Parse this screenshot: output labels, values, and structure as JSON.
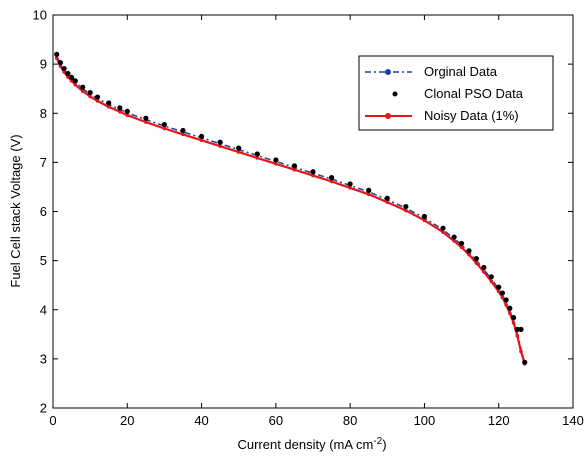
{
  "chart_data": {
    "type": "line",
    "title": "",
    "xlabel": "Current density (mA cm",
    "xlabel_sup": "-2",
    "xlabel_end": ")",
    "ylabel": "Fuel Cell stack Voltage (V)",
    "xlim": [
      0,
      140
    ],
    "ylim": [
      2,
      10
    ],
    "x_ticks": [
      "0",
      "20",
      "40",
      "60",
      "80",
      "100",
      "120",
      "140"
    ],
    "y_ticks": [
      "2",
      "3",
      "4",
      "5",
      "6",
      "7",
      "8",
      "9",
      "10"
    ],
    "grid": false,
    "legend_position": "top-right",
    "x": [
      1,
      2,
      3,
      4,
      5,
      6,
      8,
      10,
      12,
      15,
      18,
      20,
      25,
      30,
      35,
      40,
      45,
      50,
      55,
      60,
      65,
      70,
      75,
      80,
      85,
      90,
      95,
      100,
      105,
      108,
      110,
      112,
      114,
      116,
      118,
      120,
      121,
      122,
      123,
      124,
      125,
      126,
      127
    ],
    "series": [
      {
        "name": "Orginal Data",
        "color": "#1f3fa0",
        "style": "dash-dot",
        "marker": "circle",
        "values": [
          9.17,
          9.0,
          8.88,
          8.78,
          8.7,
          8.63,
          8.5,
          8.39,
          8.3,
          8.18,
          8.08,
          8.01,
          7.87,
          7.74,
          7.62,
          7.5,
          7.38,
          7.26,
          7.14,
          7.02,
          6.9,
          6.78,
          6.66,
          6.53,
          6.4,
          6.24,
          6.07,
          5.87,
          5.63,
          5.45,
          5.32,
          5.17,
          5.0,
          4.82,
          4.63,
          4.42,
          4.3,
          4.15,
          3.98,
          3.78,
          3.52,
          3.2,
          2.93
        ]
      },
      {
        "name": "Clonal PSO Data",
        "color": "#000000",
        "style": "none",
        "marker": "dot",
        "values": [
          9.2,
          9.03,
          8.91,
          8.81,
          8.73,
          8.66,
          8.53,
          8.42,
          8.33,
          8.21,
          8.11,
          8.04,
          7.9,
          7.77,
          7.65,
          7.53,
          7.41,
          7.29,
          7.17,
          7.05,
          6.93,
          6.81,
          6.69,
          6.56,
          6.43,
          6.27,
          6.1,
          5.9,
          5.66,
          5.48,
          5.35,
          5.2,
          5.04,
          4.86,
          4.67,
          4.46,
          4.34,
          4.2,
          4.03,
          3.84,
          3.6,
          3.6,
          2.93
        ]
      },
      {
        "name": "Noisy Data (1%)",
        "color": "#e8141b",
        "style": "solid",
        "marker": "circle",
        "values": [
          9.12,
          8.96,
          8.84,
          8.74,
          8.66,
          8.58,
          8.45,
          8.34,
          8.25,
          8.13,
          8.03,
          7.96,
          7.82,
          7.69,
          7.57,
          7.45,
          7.33,
          7.21,
          7.09,
          6.97,
          6.85,
          6.73,
          6.61,
          6.48,
          6.35,
          6.19,
          6.02,
          5.82,
          5.58,
          5.4,
          5.27,
          5.12,
          4.95,
          4.77,
          4.58,
          4.37,
          4.25,
          4.1,
          3.93,
          3.73,
          3.47,
          3.15,
          2.9
        ]
      }
    ]
  }
}
